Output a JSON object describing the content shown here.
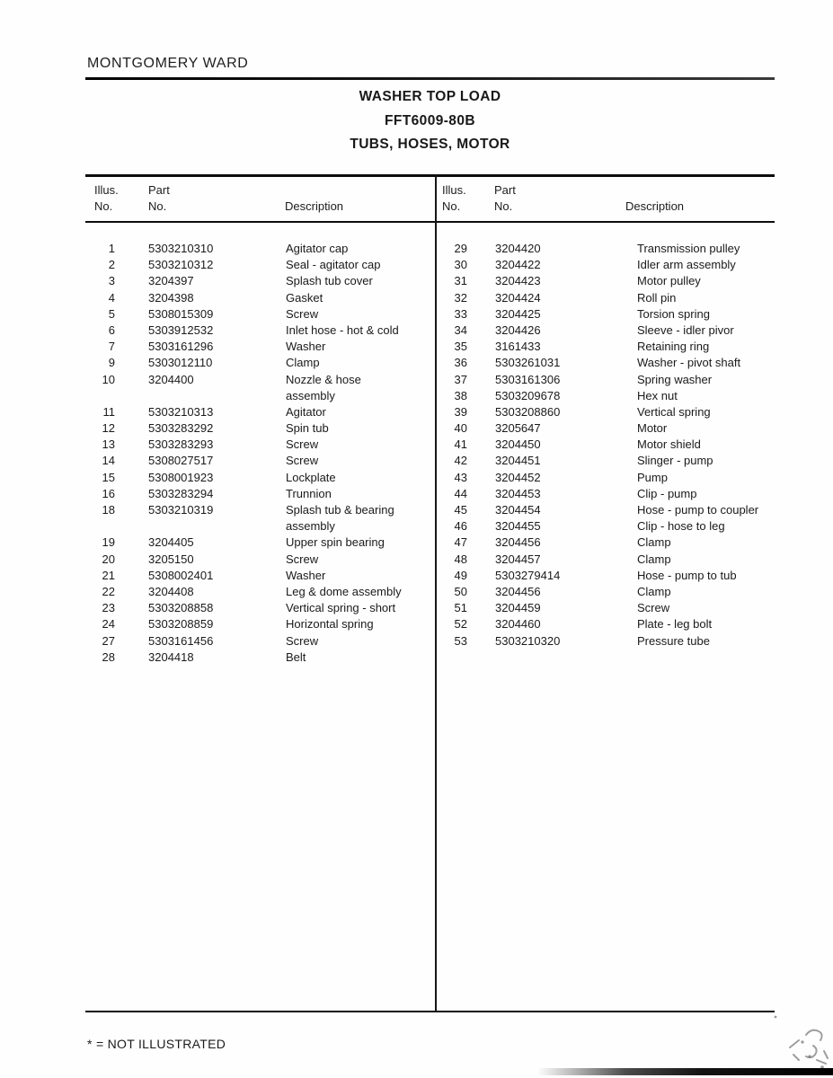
{
  "page": {
    "brand": "MONTGOMERY WARD",
    "title_line1": "WASHER TOP LOAD",
    "title_line2": "FFT6009-80B",
    "title_line3": "TUBS, HOSES, MOTOR",
    "footnote": "* = NOT ILLUSTRATED"
  },
  "colors": {
    "paper": "#fefefe",
    "ink": "#1a1a1a"
  },
  "table": {
    "headers": {
      "illus": "Illus.\nNo.",
      "part": "Part\nNo.",
      "description": "Description"
    },
    "left_rows": [
      {
        "no": "1",
        "part": "5303210310",
        "desc": "Agitator cap"
      },
      {
        "no": "2",
        "part": "5303210312",
        "desc": "Seal - agitator cap"
      },
      {
        "no": "3",
        "part": "3204397",
        "desc": "Splash tub cover"
      },
      {
        "no": "4",
        "part": "3204398",
        "desc": "Gasket"
      },
      {
        "no": "5",
        "part": "5308015309",
        "desc": "Screw"
      },
      {
        "no": "6",
        "part": "5303912532",
        "desc": "Inlet hose - hot & cold"
      },
      {
        "no": "7",
        "part": "5303161296",
        "desc": "Washer"
      },
      {
        "no": "9",
        "part": "5303012110",
        "desc": "Clamp"
      },
      {
        "no": "10",
        "part": "3204400",
        "desc": "Nozzle & hose"
      },
      {
        "no": "",
        "part": "",
        "desc": "assembly"
      },
      {
        "no": "11",
        "part": "5303210313",
        "desc": "Agitator"
      },
      {
        "no": "12",
        "part": "5303283292",
        "desc": "Spin tub"
      },
      {
        "no": "13",
        "part": "5303283293",
        "desc": "Screw"
      },
      {
        "no": "14",
        "part": "5308027517",
        "desc": "Screw"
      },
      {
        "no": "15",
        "part": "5308001923",
        "desc": "Lockplate"
      },
      {
        "no": "16",
        "part": "5303283294",
        "desc": "Trunnion"
      },
      {
        "no": "18",
        "part": "5303210319",
        "desc": "Splash tub & bearing"
      },
      {
        "no": "",
        "part": "",
        "desc": "assembly"
      },
      {
        "no": "19",
        "part": "3204405",
        "desc": "Upper spin bearing"
      },
      {
        "no": "20",
        "part": "3205150",
        "desc": "Screw"
      },
      {
        "no": "21",
        "part": "5308002401",
        "desc": "Washer"
      },
      {
        "no": "22",
        "part": "3204408",
        "desc": "Leg & dome assembly"
      },
      {
        "no": "23",
        "part": "5303208858",
        "desc": "Vertical spring - short"
      },
      {
        "no": "24",
        "part": "5303208859",
        "desc": "Horizontal spring"
      },
      {
        "no": "27",
        "part": "5303161456",
        "desc": "Screw"
      },
      {
        "no": "28",
        "part": "3204418",
        "desc": "Belt"
      }
    ],
    "right_rows": [
      {
        "no": "29",
        "part": "3204420",
        "desc": "Transmission pulley"
      },
      {
        "no": "30",
        "part": "3204422",
        "desc": "Idler arm assembly"
      },
      {
        "no": "31",
        "part": "3204423",
        "desc": "Motor pulley"
      },
      {
        "no": "32",
        "part": "3204424",
        "desc": "Roll pin"
      },
      {
        "no": "33",
        "part": "3204425",
        "desc": "Torsion spring"
      },
      {
        "no": "34",
        "part": "3204426",
        "desc": "Sleeve - idler pivor"
      },
      {
        "no": "35",
        "part": "3161433",
        "desc": "Retaining ring"
      },
      {
        "no": "36",
        "part": "5303261031",
        "desc": "Washer - pivot shaft"
      },
      {
        "no": "37",
        "part": "5303161306",
        "desc": "Spring washer"
      },
      {
        "no": "38",
        "part": "5303209678",
        "desc": "Hex nut"
      },
      {
        "no": "39",
        "part": "5303208860",
        "desc": "Vertical spring"
      },
      {
        "no": "40",
        "part": "3205647",
        "desc": "Motor"
      },
      {
        "no": "41",
        "part": "3204450",
        "desc": "Motor shield"
      },
      {
        "no": "42",
        "part": "3204451",
        "desc": "Slinger - pump"
      },
      {
        "no": "43",
        "part": "3204452",
        "desc": "Pump"
      },
      {
        "no": "44",
        "part": "3204453",
        "desc": "Clip - pump"
      },
      {
        "no": "45",
        "part": "3204454",
        "desc": "Hose - pump to coupler"
      },
      {
        "no": "46",
        "part": "3204455",
        "desc": "Clip - hose to leg"
      },
      {
        "no": "47",
        "part": "3204456",
        "desc": "Clamp"
      },
      {
        "no": "48",
        "part": "3204457",
        "desc": "Clamp"
      },
      {
        "no": "49",
        "part": "5303279414",
        "desc": "Hose - pump to tub"
      },
      {
        "no": "50",
        "part": "3204456",
        "desc": "Clamp"
      },
      {
        "no": "51",
        "part": "3204459",
        "desc": "Screw"
      },
      {
        "no": "52",
        "part": "3204460",
        "desc": "Plate - leg bolt"
      },
      {
        "no": "53",
        "part": "5303210320",
        "desc": "Pressure tube"
      }
    ]
  }
}
